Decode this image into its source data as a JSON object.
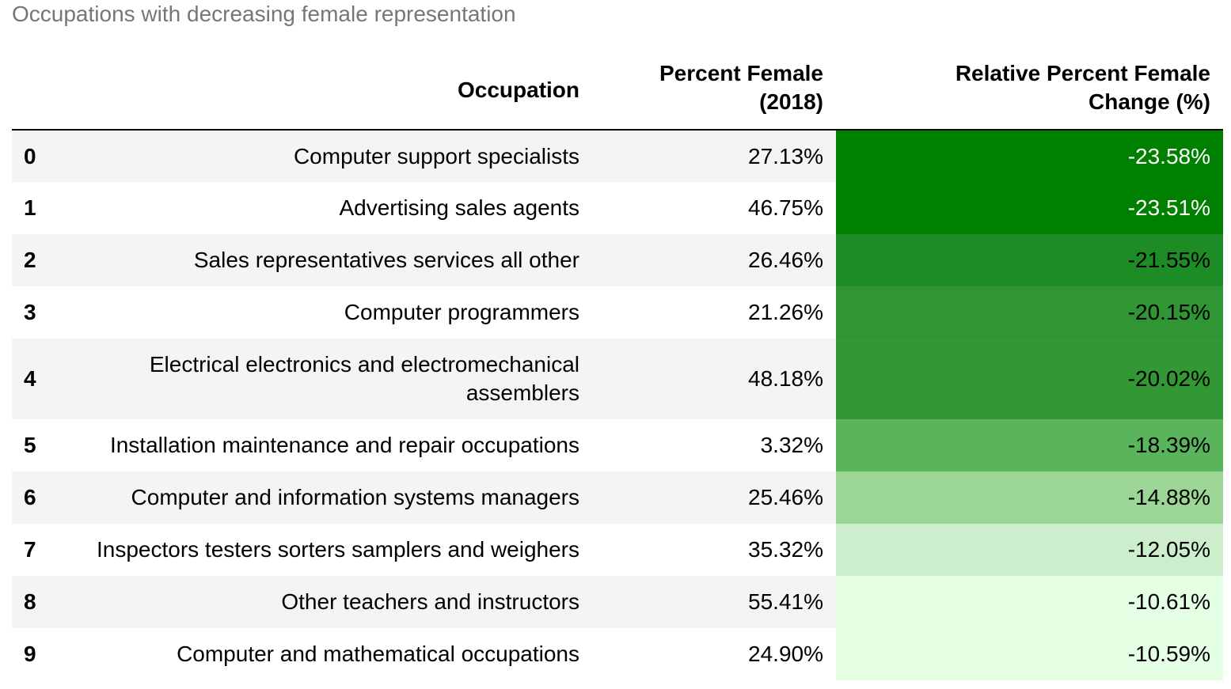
{
  "caption": "Occupations with decreasing female representation",
  "table": {
    "columns": [
      "",
      "Occupation",
      "Percent Female (2018)",
      "Relative Percent Female Change (%)"
    ],
    "header": {
      "index": "",
      "occupation": "Occupation",
      "pct_line1": "Percent Female",
      "pct_line2": "(2018)",
      "change_line1": "Relative Percent Female",
      "change_line2": "Change (%)"
    },
    "rows": [
      {
        "index": "0",
        "occupation": "Computer support specialists",
        "pct_female": "27.13%",
        "change": "-23.58%",
        "cell_bg": "#008000",
        "cell_fg": "#ffffff"
      },
      {
        "index": "1",
        "occupation": "Advertising sales agents",
        "pct_female": "46.75%",
        "change": "-23.51%",
        "cell_bg": "#008000",
        "cell_fg": "#ffffff"
      },
      {
        "index": "2",
        "occupation": "Sales representatives services all other",
        "pct_female": "26.46%",
        "change": "-21.55%",
        "cell_bg": "#1e8c25",
        "cell_fg": "#000000"
      },
      {
        "index": "3",
        "occupation": "Computer programmers",
        "pct_female": "21.26%",
        "change": "-20.15%",
        "cell_bg": "#2f9633",
        "cell_fg": "#000000"
      },
      {
        "index": "4",
        "occupation": "Electrical electronics and electromechanical assemblers",
        "pct_female": "48.18%",
        "change": "-20.02%",
        "cell_bg": "#329834",
        "cell_fg": "#000000"
      },
      {
        "index": "5",
        "occupation": "Installation maintenance and repair occupations",
        "pct_female": "3.32%",
        "change": "-18.39%",
        "cell_bg": "#5ab45c",
        "cell_fg": "#000000"
      },
      {
        "index": "6",
        "occupation": "Computer and information systems managers",
        "pct_female": "25.46%",
        "change": "-14.88%",
        "cell_bg": "#9bd697",
        "cell_fg": "#000000"
      },
      {
        "index": "7",
        "occupation": "Inspectors testers sorters samplers and weighers",
        "pct_female": "35.32%",
        "change": "-12.05%",
        "cell_bg": "#cceecc",
        "cell_fg": "#000000"
      },
      {
        "index": "8",
        "occupation": "Other teachers and instructors",
        "pct_female": "55.41%",
        "change": "-10.61%",
        "cell_bg": "#e5ffe5",
        "cell_fg": "#000000"
      },
      {
        "index": "9",
        "occupation": "Computer and mathematical occupations",
        "pct_female": "24.90%",
        "change": "-10.59%",
        "cell_bg": "#e5ffe5",
        "cell_fg": "#000000"
      }
    ]
  }
}
